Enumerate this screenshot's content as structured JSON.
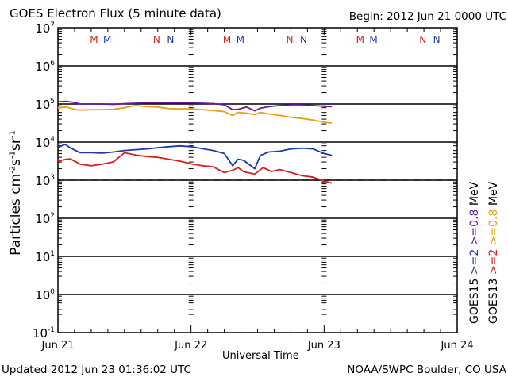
{
  "header": {
    "title": "GOES Electron Flux (5 minute data)",
    "begin": "Begin: 2012 Jun 21 0000 UTC"
  },
  "footer": {
    "updated": "Updated 2012 Jun 23 01:36:02 UTC",
    "credit": "NOAA/SWPC Boulder, CO USA"
  },
  "chart_data": {
    "type": "line",
    "title": "GOES Electron Flux (5 minute data)",
    "xlabel": "Universal Time",
    "ylabel": "Particles cm-2s-1sr-1",
    "yscale": "log",
    "ylim": [
      0.1,
      10000000
    ],
    "xlim_hours": [
      0,
      72
    ],
    "x_ticks": [
      {
        "hour": 0,
        "label": "Jun 21"
      },
      {
        "hour": 24,
        "label": "Jun 22"
      },
      {
        "hour": 48,
        "label": "Jun 23"
      },
      {
        "hour": 72,
        "label": "Jun 24"
      }
    ],
    "y_ticks": [
      {
        "exp": 7,
        "label": "10",
        "sup": "7"
      },
      {
        "exp": 6,
        "label": "10",
        "sup": "6"
      },
      {
        "exp": 5,
        "label": "10",
        "sup": "5"
      },
      {
        "exp": 4,
        "label": "10",
        "sup": "4"
      },
      {
        "exp": 3,
        "label": "10",
        "sup": "3"
      },
      {
        "exp": 2,
        "label": "10",
        "sup": "2"
      },
      {
        "exp": 1,
        "label": "10",
        "sup": "1"
      },
      {
        "exp": 0,
        "label": "10",
        "sup": "0"
      },
      {
        "exp": -1,
        "label": "10",
        "sup": "-1"
      }
    ],
    "threshold": {
      "value": 1000,
      "style": "dashed"
    },
    "grid": "horizontal decades",
    "day_markers": [
      {
        "day": 0,
        "labels": [
          {
            "text": "M",
            "color": "#cc2222",
            "hour": 6.5
          },
          {
            "text": "M",
            "color": "#1a3aaa",
            "hour": 8.9
          },
          {
            "text": "N",
            "color": "#cc2222",
            "hour": 17.8
          },
          {
            "text": "N",
            "color": "#1a3aaa",
            "hour": 20.3
          }
        ]
      },
      {
        "day": 1,
        "labels": [
          {
            "text": "M",
            "color": "#cc2222",
            "hour": 30.5
          },
          {
            "text": "M",
            "color": "#1a3aaa",
            "hour": 32.9
          },
          {
            "text": "N",
            "color": "#cc2222",
            "hour": 41.8
          },
          {
            "text": "N",
            "color": "#1a3aaa",
            "hour": 44.3
          }
        ]
      },
      {
        "day": 2,
        "labels": [
          {
            "text": "M",
            "color": "#cc2222",
            "hour": 54.5
          },
          {
            "text": "M",
            "color": "#1a3aaa",
            "hour": 56.9
          },
          {
            "text": "N",
            "color": "#cc2222",
            "hour": 65.8
          },
          {
            "text": "N",
            "color": "#1a3aaa",
            "hour": 68.3
          }
        ]
      }
    ],
    "series": [
      {
        "name": "GOES15 >=0.8 MeV",
        "color": "#6a1a9a",
        "hours": [
          0,
          1.5,
          3,
          4,
          6,
          8,
          10,
          12,
          14,
          16,
          18,
          20,
          22,
          24,
          26,
          28,
          30,
          31.5,
          32.5,
          34,
          35.5,
          36.5,
          38,
          40,
          42,
          44,
          46,
          48,
          49.4
        ],
        "log10_values": [
          5.06,
          5.07,
          5.04,
          5.0,
          5.0,
          5.0,
          4.99,
          5.01,
          5.02,
          5.03,
          5.03,
          5.03,
          5.03,
          5.03,
          5.02,
          5.01,
          4.98,
          4.85,
          4.86,
          4.92,
          4.82,
          4.89,
          4.93,
          4.96,
          4.98,
          4.98,
          4.96,
          4.94,
          4.93
        ]
      },
      {
        "name": "GOES13 >=0.8 MeV",
        "color": "#e8a010",
        "hours": [
          0,
          1.5,
          3,
          4,
          6,
          8,
          10,
          12,
          14,
          16,
          18,
          20,
          22,
          24,
          26,
          28,
          30,
          31.5,
          32.5,
          34,
          35.5,
          36.5,
          38,
          40,
          42,
          44,
          46,
          48,
          49.4
        ],
        "log10_values": [
          4.9,
          4.92,
          4.86,
          4.84,
          4.85,
          4.85,
          4.86,
          4.9,
          4.96,
          4.93,
          4.92,
          4.88,
          4.87,
          4.87,
          4.85,
          4.83,
          4.8,
          4.7,
          4.78,
          4.76,
          4.72,
          4.78,
          4.74,
          4.7,
          4.65,
          4.62,
          4.58,
          4.52,
          4.5
        ]
      },
      {
        "name": "GOES15 >=2 MeV",
        "color": "#1a3aaa",
        "hours": [
          0,
          1.3,
          2.2,
          4,
          6,
          8,
          10,
          12,
          14,
          16,
          18,
          20,
          22,
          24,
          26,
          28,
          30,
          31.5,
          32.5,
          33.5,
          35.5,
          36.5,
          38,
          40,
          42,
          44,
          46,
          48,
          49.4
        ],
        "log10_values": [
          3.86,
          3.94,
          3.85,
          3.72,
          3.72,
          3.71,
          3.74,
          3.78,
          3.8,
          3.82,
          3.85,
          3.88,
          3.9,
          3.88,
          3.83,
          3.78,
          3.7,
          3.38,
          3.55,
          3.52,
          3.3,
          3.65,
          3.74,
          3.76,
          3.82,
          3.84,
          3.82,
          3.7,
          3.65
        ]
      },
      {
        "name": "GOES13 >=2 MeV",
        "color": "#d82020",
        "hours": [
          0,
          1.5,
          2.2,
          4,
          6,
          8,
          10,
          11,
          12,
          14,
          16,
          18,
          20,
          22,
          24,
          26,
          28,
          30,
          31.5,
          32.5,
          33.5,
          35.5,
          37,
          38.5,
          40,
          42,
          44,
          46,
          48,
          49.4
        ],
        "log10_values": [
          3.5,
          3.55,
          3.56,
          3.42,
          3.38,
          3.42,
          3.48,
          3.6,
          3.72,
          3.66,
          3.62,
          3.6,
          3.55,
          3.5,
          3.43,
          3.38,
          3.35,
          3.2,
          3.26,
          3.33,
          3.22,
          3.16,
          3.33,
          3.23,
          3.28,
          3.2,
          3.12,
          3.08,
          2.98,
          2.92
        ]
      }
    ],
    "legend": {
      "placement": "right",
      "columns": [
        {
          "satellite": "GOES15",
          "entries": [
            {
              "text": ">=2",
              "color": "#1a3aaa"
            },
            {
              "text": ">=0.8",
              "color": "#6a1a9a"
            }
          ],
          "unit": "MeV"
        },
        {
          "satellite": "GOES13",
          "entries": [
            {
              "text": ">=2",
              "color": "#d82020"
            },
            {
              "text": ">=0.8",
              "color": "#e8a010"
            }
          ],
          "unit": "MeV"
        }
      ]
    }
  }
}
